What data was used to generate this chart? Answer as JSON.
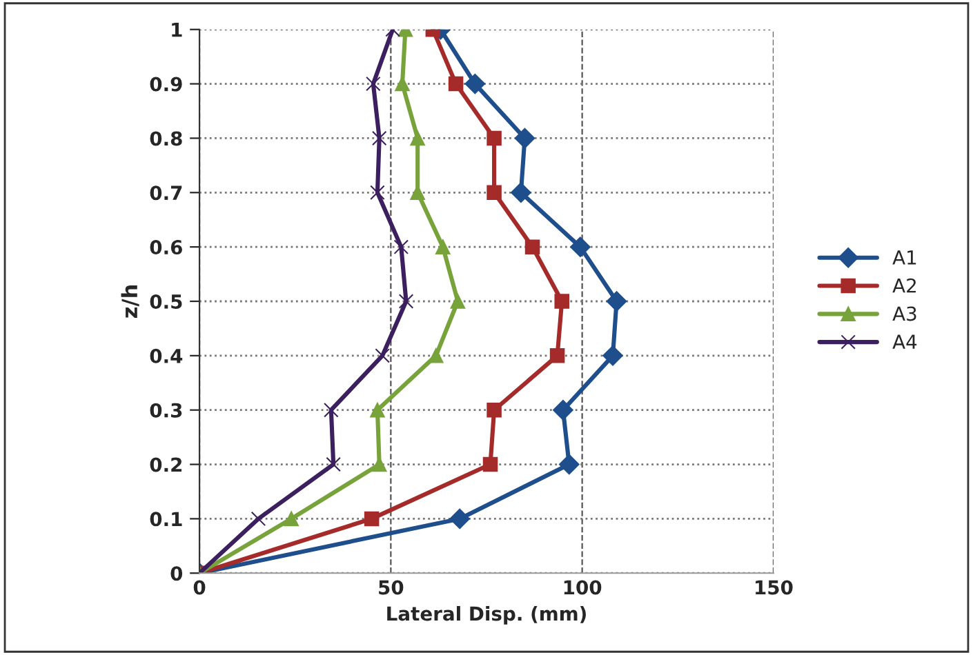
{
  "chart_data": {
    "type": "line",
    "xlabel": "Lateral Disp. (mm)",
    "ylabel": "z/h",
    "series": [
      {
        "name": "A1",
        "color": "#1f4e8c",
        "marker": "diamond",
        "x": [
          0,
          68,
          96.6,
          95,
          108,
          109,
          99.5,
          84,
          85,
          72,
          63
        ],
        "values": [
          0,
          0.1,
          0.2,
          0.3,
          0.4,
          0.5,
          0.6,
          0.7,
          0.8,
          0.9,
          1
        ]
      },
      {
        "name": "A2",
        "color": "#a52a2a",
        "marker": "square",
        "x": [
          0,
          45,
          76,
          77,
          93.5,
          94.7,
          87,
          77,
          77,
          67,
          61
        ],
        "values": [
          0,
          0.1,
          0.2,
          0.3,
          0.4,
          0.5,
          0.6,
          0.7,
          0.8,
          0.9,
          1
        ]
      },
      {
        "name": "A3",
        "color": "#77a33a",
        "marker": "triangle",
        "x": [
          0,
          24,
          47,
          46.5,
          61.8,
          67.5,
          63.6,
          57,
          57,
          53,
          53.8
        ],
        "values": [
          0,
          0.1,
          0.2,
          0.3,
          0.4,
          0.5,
          0.6,
          0.7,
          0.8,
          0.9,
          1
        ]
      },
      {
        "name": "A4",
        "color": "#3b1f5e",
        "marker": "cross",
        "x": [
          0,
          15.4,
          35,
          34.4,
          47.8,
          54,
          52.7,
          46.5,
          47,
          45.4,
          50.5
        ],
        "values": [
          0,
          0.1,
          0.2,
          0.3,
          0.4,
          0.5,
          0.6,
          0.7,
          0.8,
          0.9,
          1
        ]
      }
    ],
    "xlim": [
      0,
      150
    ],
    "xticks": [
      0,
      50,
      100,
      150
    ],
    "ylim": [
      0,
      1
    ],
    "yticks": [
      0,
      0.1,
      0.2,
      0.3,
      0.4,
      0.5,
      0.6,
      0.7,
      0.8,
      0.9,
      1
    ],
    "grid": true,
    "legend": "right"
  }
}
